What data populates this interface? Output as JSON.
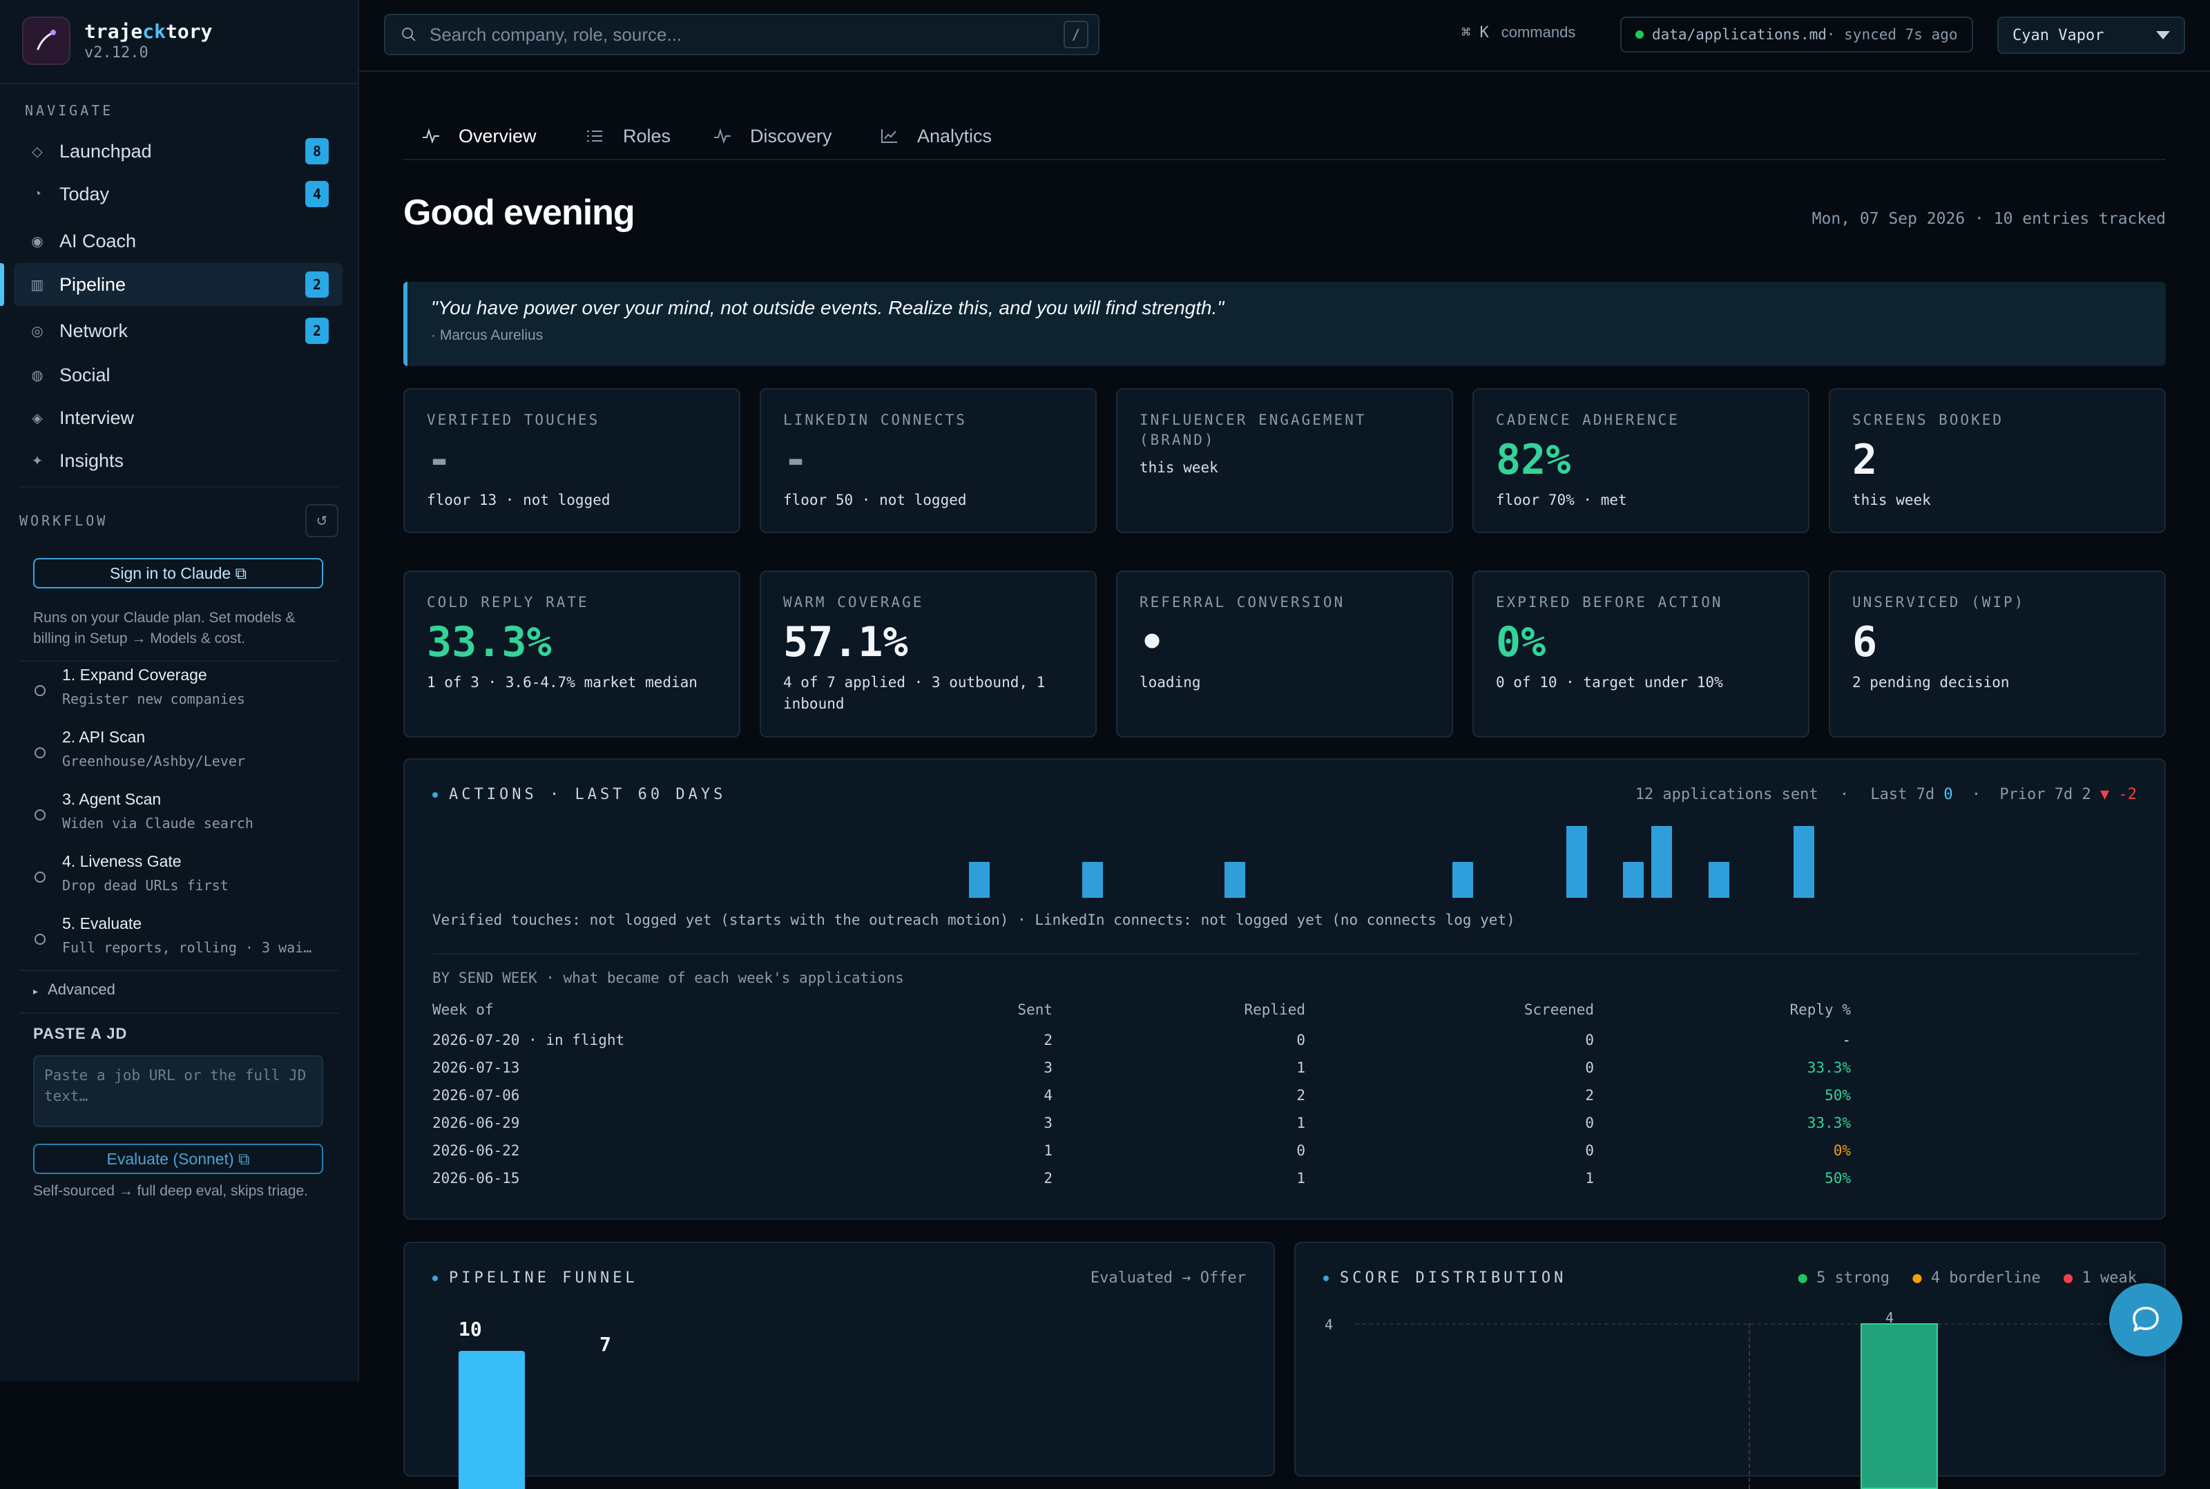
{
  "brand": {
    "name_pre": "traje",
    "name_hl": "ck",
    "name_post": "tory",
    "version": "v2.12.0"
  },
  "sidebar": {
    "nav_label": "NAVIGATE",
    "nav": [
      {
        "label": "Launchpad",
        "icon": "diamond-outline-icon",
        "badge": "8"
      },
      {
        "label": "Today",
        "icon": "clock-icon",
        "badge": "4"
      },
      {
        "label": "AI Coach",
        "icon": "target-icon",
        "badge": ""
      },
      {
        "label": "Pipeline",
        "icon": "columns-icon",
        "badge": "2",
        "active": true
      },
      {
        "label": "Network",
        "icon": "at-icon",
        "badge": "2"
      },
      {
        "label": "Social",
        "icon": "globe-icon",
        "badge": ""
      },
      {
        "label": "Interview",
        "icon": "diamond-dot-icon",
        "badge": ""
      },
      {
        "label": "Insights",
        "icon": "sparkle-icon",
        "badge": ""
      }
    ],
    "workflow_label": "WORKFLOW",
    "signin_label": "Sign in to Claude ⧉",
    "signin_note": "Runs on your Claude plan. Set models & billing in Setup → Models & cost.",
    "steps": [
      {
        "title": "1. Expand Coverage",
        "sub": "Register new companies"
      },
      {
        "title": "2. API Scan",
        "sub": "Greenhouse/Ashby/Lever"
      },
      {
        "title": "3. Agent Scan",
        "sub": "Widen via Claude search"
      },
      {
        "title": "4. Liveness Gate",
        "sub": "Drop dead URLs first"
      },
      {
        "title": "5. Evaluate",
        "sub": "Full reports, rolling · 3 wai…"
      }
    ],
    "advanced_label": "Advanced",
    "paste_label": "PASTE A JD",
    "paste_placeholder": "Paste a job URL or the full JD text…",
    "evaluate_label": "Evaluate (Sonnet) ⧉",
    "evaluate_note": "Self-sourced → full deep eval, skips triage."
  },
  "topbar": {
    "search_placeholder": "Search company, role, source...",
    "search_kbd": "/",
    "cmd_keys": "⌘ K",
    "cmd_label": "commands",
    "sync_file": "data/applications.md",
    "sync_status": " · synced 7s ago",
    "sync_color": "#22c55e",
    "theme": "Cyan Vapor"
  },
  "tabs": [
    {
      "label": "Overview",
      "icon": "pulse-icon",
      "active": true
    },
    {
      "label": "Roles",
      "icon": "list-icon"
    },
    {
      "label": "Discovery",
      "icon": "pulse-icon"
    },
    {
      "label": "Analytics",
      "icon": "line-chart-icon"
    }
  ],
  "header": {
    "greeting": "Good evening",
    "date_line": "Mon, 07 Sep 2026 · 10 entries tracked"
  },
  "quote": {
    "text": "\"You have power over your mind, not outside events. Realize this, and you will find strength.\"",
    "author": "· Marcus Aurelius"
  },
  "cards_row1": [
    {
      "label": "VERIFIED TOUCHES",
      "value": "-",
      "sub": "floor 13 · not logged",
      "tone": "dash"
    },
    {
      "label": "LINKEDIN CONNECTS",
      "value": "-",
      "sub": "floor 50 · not logged",
      "tone": "dash"
    },
    {
      "label": "INFLUENCER ENGAGEMENT (BRAND)",
      "value": "",
      "sub": "this week",
      "tone": ""
    },
    {
      "label": "CADENCE ADHERENCE",
      "value": "82%",
      "sub": "floor 70% · met",
      "tone": "green"
    },
    {
      "label": "SCREENS BOOKED",
      "value": "2",
      "sub": "this week",
      "tone": ""
    }
  ],
  "cards_row2": [
    {
      "label": "COLD REPLY RATE",
      "value": "33.3%",
      "sub": "1 of 3 · 3.6-4.7% market median",
      "tone": "green"
    },
    {
      "label": "WARM COVERAGE",
      "value": "57.1%",
      "sub": "4 of 7 applied · 3 outbound, 1 inbound",
      "tone": ""
    },
    {
      "label": "REFERRAL CONVERSION",
      "value": "•",
      "sub": "loading",
      "tone": ""
    },
    {
      "label": "EXPIRED BEFORE ACTION",
      "value": "0%",
      "sub": "0 of 10 · target under 10%",
      "tone": "green"
    },
    {
      "label": "UNSERVICED (WIP)",
      "value": "6",
      "sub": "2 pending decision",
      "tone": ""
    }
  ],
  "actions": {
    "title": "ACTIONS · LAST 60 DAYS",
    "summary": "12 applications sent",
    "last7_label": "Last 7d",
    "last7_value": "0",
    "prior7_label": "Prior 7d 2",
    "delta": "▼ -2",
    "note": "Verified touches: not logged yet (starts with the outreach motion) · LinkedIn connects: not logged yet (no connects log yet)",
    "by_week_title": "BY SEND WEEK · what became of each week's applications",
    "columns": {
      "week": "Week of",
      "sent": "Sent",
      "replied": "Replied",
      "screened": "Screened",
      "reply": "Reply %"
    },
    "rows": [
      {
        "week": "2026-07-20 · in flight",
        "sent": "2",
        "replied": "0",
        "screened": "0",
        "reply": "-",
        "tone": ""
      },
      {
        "week": "2026-07-13",
        "sent": "3",
        "replied": "1",
        "screened": "0",
        "reply": "33.3%",
        "tone": "green"
      },
      {
        "week": "2026-07-06",
        "sent": "4",
        "replied": "2",
        "screened": "2",
        "reply": "50%",
        "tone": "green"
      },
      {
        "week": "2026-06-29",
        "sent": "3",
        "replied": "1",
        "screened": "0",
        "reply": "33.3%",
        "tone": "green"
      },
      {
        "week": "2026-06-22",
        "sent": "1",
        "replied": "0",
        "screened": "0",
        "reply": "0%",
        "tone": "orange"
      },
      {
        "week": "2026-06-15",
        "sent": "2",
        "replied": "1",
        "screened": "1",
        "reply": "50%",
        "tone": "green"
      }
    ]
  },
  "chart_data": [
    {
      "type": "bar",
      "title": "ACTIONS · LAST 60 DAYS",
      "x": [
        18,
        22,
        27,
        35,
        39,
        41,
        42,
        44,
        47
      ],
      "values": [
        1,
        1,
        1,
        1,
        2,
        1,
        2,
        1,
        2
      ],
      "xlim": [
        0,
        60
      ],
      "ylim": [
        0,
        2
      ]
    },
    {
      "type": "bar",
      "title": "PIPELINE FUNNEL",
      "subtitle": "Evaluated → Offer",
      "values": [
        10,
        7
      ]
    },
    {
      "type": "bar",
      "title": "SCORE DISTRIBUTION",
      "legend": [
        "5 strong",
        "4 borderline",
        "1 weak"
      ],
      "legend_colors": [
        "#22c55e",
        "#f59e0b",
        "#ef4444"
      ],
      "ytick": "4",
      "bar_label": "4"
    }
  ],
  "funnel": {
    "title": "PIPELINE FUNNEL",
    "subtitle": "Evaluated → Offer",
    "values": [
      "10",
      "7"
    ]
  },
  "score": {
    "title": "SCORE DISTRIBUTION",
    "legend": [
      "5 strong",
      "4 borderline",
      "1 weak"
    ],
    "ytick": "4",
    "bar_label": "4"
  }
}
